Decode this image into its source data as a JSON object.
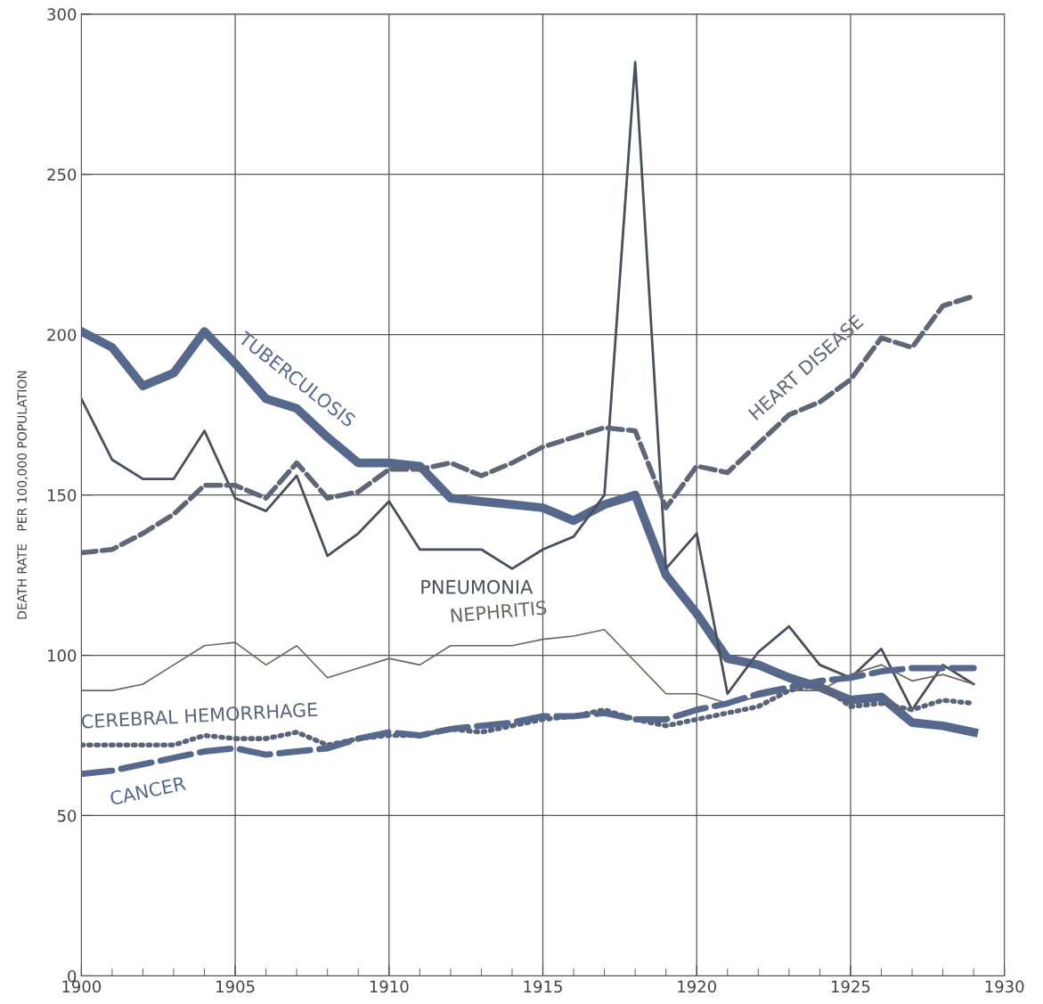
{
  "chart_data": {
    "type": "line",
    "ylabel": "DEATH RATE   PER 100,000 POPULATION",
    "x": [
      1900,
      1901,
      1902,
      1903,
      1904,
      1905,
      1906,
      1907,
      1908,
      1909,
      1910,
      1911,
      1912,
      1913,
      1914,
      1915,
      1916,
      1917,
      1918,
      1919,
      1920,
      1921,
      1922,
      1923,
      1924,
      1925,
      1926,
      1927,
      1928,
      1929
    ],
    "series": [
      {
        "name": "TUBERCULOSIS",
        "color": "#56688c",
        "line_style": "solid",
        "values": [
          201,
          196,
          184,
          188,
          201,
          191,
          180,
          177,
          168,
          160,
          160,
          159,
          149,
          148,
          147,
          146,
          142,
          147,
          150,
          125,
          113,
          99,
          97,
          93,
          90,
          86,
          87,
          79,
          78,
          76
        ]
      },
      {
        "name": "PNEUMONIA",
        "color": "#4a4f5c",
        "line_style": "solid",
        "values": [
          180,
          161,
          155,
          155,
          170,
          149,
          145,
          156,
          131,
          138,
          148,
          133,
          133,
          133,
          127,
          133,
          137,
          150,
          285,
          127,
          138,
          88,
          101,
          109,
          97,
          93,
          102,
          83,
          97,
          91
        ]
      },
      {
        "name": "HEART DISEASE",
        "color": "#5f6676",
        "line_style": "dashed",
        "values": [
          132,
          133,
          138,
          144,
          153,
          153,
          149,
          160,
          149,
          151,
          158,
          158,
          160,
          156,
          160,
          165,
          168,
          171,
          170,
          146,
          159,
          157,
          166,
          175,
          179,
          186,
          199,
          196,
          209,
          212
        ]
      },
      {
        "name": "NEPHRITIS",
        "color": "#6b6660",
        "line_style": "solid",
        "values": [
          89,
          89,
          91,
          97,
          103,
          104,
          97,
          103,
          93,
          96,
          99,
          97,
          103,
          103,
          103,
          105,
          106,
          108,
          98,
          88,
          88,
          85,
          87,
          89,
          89,
          94,
          97,
          92,
          94,
          91
        ]
      },
      {
        "name": "CEREBRAL HEMORRHAGE",
        "color": "#5a6378",
        "line_style": "dotted",
        "values": [
          72,
          72,
          72,
          72,
          75,
          74,
          74,
          76,
          72,
          74,
          75,
          75,
          77,
          76,
          78,
          80,
          81,
          83,
          80,
          78,
          80,
          82,
          84,
          89,
          91,
          84,
          85,
          83,
          86,
          85
        ]
      },
      {
        "name": "CANCER",
        "color": "#56688c",
        "line_style": "dashed",
        "values": [
          63,
          64,
          66,
          68,
          70,
          71,
          69,
          70,
          71,
          74,
          76,
          75,
          77,
          78,
          79,
          81,
          81,
          82,
          80,
          80,
          83,
          85,
          88,
          90,
          92,
          93,
          95,
          96,
          96,
          96
        ]
      }
    ],
    "xlim": [
      1900,
      1930
    ],
    "xticks": [
      1900,
      {
        "value": 1901,
        "label": null
      },
      {
        "value": 1902,
        "label": null
      },
      {
        "value": 1903,
        "label": null
      },
      {
        "value": 1904,
        "label": null
      },
      1905,
      {
        "value": 1906,
        "label": null
      },
      {
        "value": 1907,
        "label": null
      },
      {
        "value": 1908,
        "label": null
      },
      {
        "value": 1909,
        "label": null
      },
      1910,
      {
        "value": 1911,
        "label": null
      },
      {
        "value": 1912,
        "label": null
      },
      {
        "value": 1913,
        "label": null
      },
      {
        "value": 1914,
        "label": null
      },
      1915,
      {
        "value": 1916,
        "label": null
      },
      {
        "value": 1917,
        "label": null
      },
      {
        "value": 1918,
        "label": null
      },
      {
        "value": 1919,
        "label": null
      },
      1920,
      {
        "value": 1921,
        "label": null
      },
      {
        "value": 1922,
        "label": null
      },
      {
        "value": 1923,
        "label": null
      },
      {
        "value": 1924,
        "label": null
      },
      1925,
      {
        "value": 1926,
        "label": null
      },
      {
        "value": 1927,
        "label": null
      },
      {
        "value": 1928,
        "label": null
      },
      {
        "value": 1929,
        "label": null
      },
      1930
    ],
    "ylim": [
      0,
      300
    ],
    "yticks": [
      0,
      50,
      100,
      150,
      200,
      250,
      300
    ],
    "grid": true,
    "legend": false
  }
}
